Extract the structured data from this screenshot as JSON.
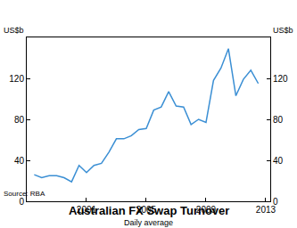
{
  "chart_data": {
    "type": "line",
    "title": "Australian FX Swap Turnover",
    "subtitle": "Daily average",
    "ylabel": "US$b",
    "y2label": "US$b",
    "source": "Source: RBA",
    "x": [
      1997.5,
      1998,
      1998.5,
      1999,
      1999.5,
      2000,
      2000.5,
      2001,
      2001.5,
      2002,
      2002.5,
      2003,
      2003.5,
      2004,
      2004.5,
      2005,
      2005.5,
      2006,
      2006.5,
      2007,
      2007.5,
      2008,
      2008.5,
      2009,
      2009.5,
      2010,
      2010.5,
      2011,
      2011.5,
      2012,
      2012.5
    ],
    "values": [
      26,
      23,
      25,
      25,
      23,
      19,
      35,
      28,
      35,
      37,
      48,
      61,
      61,
      64,
      70,
      71,
      89,
      92,
      107,
      93,
      92,
      75,
      80,
      77,
      118,
      130,
      149,
      103,
      119,
      128,
      115
    ],
    "color": "#3b8fd4",
    "xlim": [
      1997,
      2013.3
    ],
    "xticks": [
      2001,
      2005,
      2009,
      2013
    ],
    "ylim": [
      0,
      160
    ],
    "yticks": [
      0,
      40,
      80,
      120
    ],
    "y2lim": [
      0,
      160
    ],
    "y2ticks": [
      0,
      40,
      80,
      120
    ],
    "grid": false
  }
}
